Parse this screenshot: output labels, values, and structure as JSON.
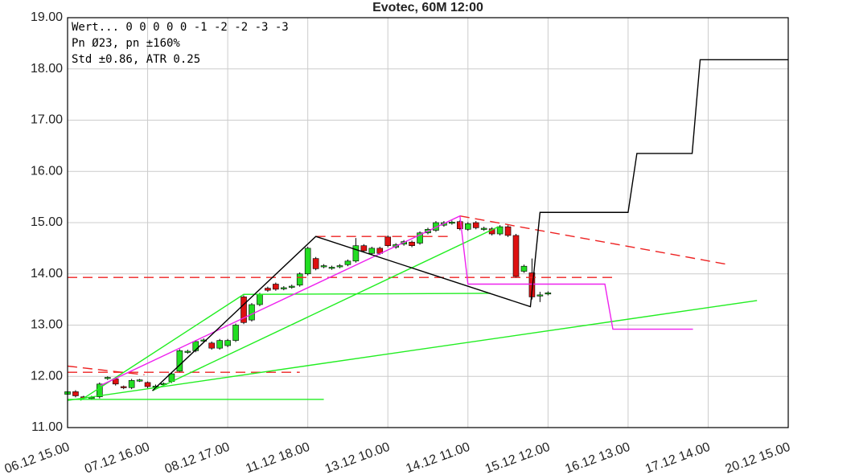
{
  "chart_data": {
    "type": "candlestick",
    "title": "Evotec, 60M 12:00",
    "info_lines": [
      "Wert... 0  0  0  0  0 -1 -2 -2 -3 -3",
      "Pn  Ø23, pn ±160%",
      "Std ±0.86, ATR 0.25"
    ],
    "xlim": [
      0,
      9
    ],
    "xticks": [
      {
        "value": 0,
        "label": "06.12 15.00"
      },
      {
        "value": 1,
        "label": "07.12 16.00"
      },
      {
        "value": 2,
        "label": "08.12 17.00"
      },
      {
        "value": 3,
        "label": "11.12 18.00"
      },
      {
        "value": 4,
        "label": "13.12 10.00"
      },
      {
        "value": 5,
        "label": "14.12 11.00"
      },
      {
        "value": 6,
        "label": "15.12 12.00"
      },
      {
        "value": 7,
        "label": "16.12 13.00"
      },
      {
        "value": 8,
        "label": "17.12 14.00"
      },
      {
        "value": 9,
        "label": "20.12 15.00"
      }
    ],
    "ylim": [
      11,
      19
    ],
    "yticks": [
      {
        "value": 11,
        "label": "11.00"
      },
      {
        "value": 12,
        "label": "12.00"
      },
      {
        "value": 13,
        "label": "13.00"
      },
      {
        "value": 14,
        "label": "14.00"
      },
      {
        "value": 15,
        "label": "15.00"
      },
      {
        "value": 16,
        "label": "16.00"
      },
      {
        "value": 17,
        "label": "17.00"
      },
      {
        "value": 18,
        "label": "18.00"
      },
      {
        "value": 19,
        "label": "19.00"
      }
    ],
    "grid": true,
    "up_color": "#22dd22",
    "down_color": "#dd1111",
    "x": [
      0,
      0.1,
      0.2,
      0.3,
      0.4,
      0.5,
      0.6,
      0.7,
      0.8,
      0.9,
      1,
      1.1,
      1.2,
      1.3,
      1.4,
      1.5,
      1.6,
      1.7,
      1.8,
      1.9,
      2,
      2.1,
      2.2,
      2.3,
      2.4,
      2.5,
      2.6,
      2.7,
      2.8,
      2.9,
      3,
      3.1,
      3.2,
      3.3,
      3.4,
      3.5,
      3.6,
      3.7,
      3.8,
      3.9,
      4,
      4.1,
      4.2,
      4.3,
      4.4,
      4.5,
      4.6,
      4.7,
      4.8,
      4.9,
      5,
      5.1,
      5.2,
      5.3,
      5.4,
      5.5,
      5.6,
      5.7,
      5.8,
      5.9,
      6
    ],
    "open": [
      11.65,
      11.7,
      11.6,
      11.57,
      11.6,
      11.96,
      11.95,
      11.8,
      11.78,
      11.92,
      11.88,
      11.8,
      11.84,
      11.9,
      12.1,
      12.47,
      12.5,
      12.69,
      12.65,
      12.55,
      12.6,
      12.7,
      13.55,
      13.1,
      13.4,
      13.72,
      13.8,
      13.71,
      13.74,
      13.78,
      14.0,
      14.3,
      14.14,
      14.11,
      14.14,
      14.18,
      14.25,
      14.55,
      14.4,
      14.5,
      14.72,
      14.52,
      14.58,
      14.62,
      14.6,
      14.8,
      14.85,
      14.95,
      14.99,
      15.02,
      14.87,
      15.0,
      14.87,
      14.88,
      14.78,
      14.92,
      14.75,
      14.05,
      14.02,
      13.57,
      13.61
    ],
    "high": [
      11.73,
      11.73,
      11.62,
      11.62,
      11.88,
      12.0,
      11.98,
      11.82,
      11.95,
      11.95,
      11.9,
      11.84,
      11.88,
      12.08,
      12.53,
      12.52,
      12.71,
      12.74,
      12.68,
      12.73,
      12.73,
      13.03,
      13.58,
      13.43,
      13.63,
      13.75,
      13.83,
      13.76,
      13.79,
      14.03,
      14.53,
      14.33,
      14.19,
      14.16,
      14.19,
      14.28,
      14.7,
      14.58,
      14.53,
      14.53,
      14.75,
      14.6,
      14.66,
      14.65,
      14.83,
      14.9,
      15.03,
      15.03,
      15.04,
      15.05,
      15.01,
      15.03,
      14.92,
      14.91,
      14.95,
      14.95,
      14.78,
      14.18,
      14.3,
      13.65,
      13.66
    ],
    "low": [
      11.62,
      11.59,
      11.55,
      11.54,
      11.57,
      11.93,
      11.82,
      11.75,
      11.75,
      11.89,
      11.77,
      11.78,
      11.81,
      11.87,
      12.07,
      12.44,
      12.47,
      12.66,
      12.52,
      12.52,
      12.57,
      12.67,
      13.02,
      13.07,
      13.37,
      13.65,
      13.67,
      13.68,
      13.71,
      13.75,
      13.97,
      14.07,
      14.11,
      14.08,
      14.11,
      14.15,
      14.22,
      14.42,
      14.37,
      14.37,
      14.52,
      14.49,
      14.55,
      14.52,
      14.57,
      14.77,
      14.82,
      14.92,
      14.96,
      14.85,
      14.84,
      14.87,
      14.84,
      14.75,
      14.75,
      14.72,
      13.92,
      14.02,
      13.5,
      13.45,
      13.58
    ],
    "close": [
      11.7,
      11.62,
      11.58,
      11.59,
      11.85,
      11.98,
      11.85,
      11.78,
      11.92,
      11.93,
      11.8,
      11.81,
      11.86,
      12.05,
      12.5,
      12.49,
      12.68,
      12.71,
      12.55,
      12.7,
      12.7,
      13.0,
      13.05,
      13.4,
      13.6,
      13.68,
      13.7,
      13.73,
      13.76,
      14.0,
      14.5,
      14.1,
      14.16,
      14.13,
      14.16,
      14.25,
      14.55,
      14.45,
      14.5,
      14.4,
      14.55,
      14.57,
      14.63,
      14.55,
      14.8,
      14.87,
      15.0,
      15.0,
      15.01,
      14.88,
      14.98,
      14.9,
      14.89,
      14.78,
      14.92,
      14.75,
      13.95,
      14.15,
      13.55,
      13.59,
      13.63
    ],
    "lines": [
      {
        "color": "#ee2222",
        "dashed": true,
        "x": [
          0,
          0.96
        ],
        "values": [
          12.2,
          12.03
        ]
      },
      {
        "color": "#ee2222",
        "dashed": true,
        "x": [
          0,
          2.9
        ],
        "values": [
          12.08,
          12.08
        ]
      },
      {
        "color": "#ee2222",
        "dashed": true,
        "x": [
          0,
          6.8
        ],
        "values": [
          13.93,
          13.93
        ]
      },
      {
        "color": "#ee2222",
        "dashed": true,
        "x": [
          3.1,
          4.8
        ],
        "values": [
          14.73,
          14.73
        ]
      },
      {
        "color": "#ee2222",
        "dashed": true,
        "x": [
          4.9,
          8.26
        ],
        "values": [
          15.13,
          14.18
        ]
      },
      {
        "color": "#22ee22",
        "dashed": false,
        "x": [
          0,
          3.2
        ],
        "values": [
          11.55,
          11.55
        ]
      },
      {
        "color": "#22ee22",
        "dashed": false,
        "x": [
          0,
          8.61
        ],
        "values": [
          11.53,
          13.48
        ]
      },
      {
        "color": "#22ee22",
        "dashed": false,
        "x": [
          0.16,
          2.2,
          5.28
        ],
        "values": [
          11.53,
          13.6,
          13.62
        ]
      },
      {
        "color": "#22ee22",
        "dashed": false,
        "x": [
          1.06,
          5.38
        ],
        "values": [
          11.72,
          14.92
        ]
      },
      {
        "color": "#ee22ee",
        "dashed": false,
        "x": [
          0.41,
          4.9,
          5.0,
          6.71,
          6.81,
          7.81
        ],
        "values": [
          11.82,
          15.13,
          13.8,
          13.8,
          12.92,
          12.92
        ]
      },
      {
        "color": "#000000",
        "dashed": false,
        "x": [
          1.06,
          3.1,
          5.78,
          5.9,
          7.0,
          7.11,
          7.8,
          7.9,
          9.0
        ],
        "values": [
          11.72,
          14.73,
          13.36,
          15.2,
          15.2,
          16.35,
          16.35,
          18.18,
          18.18
        ]
      }
    ]
  }
}
